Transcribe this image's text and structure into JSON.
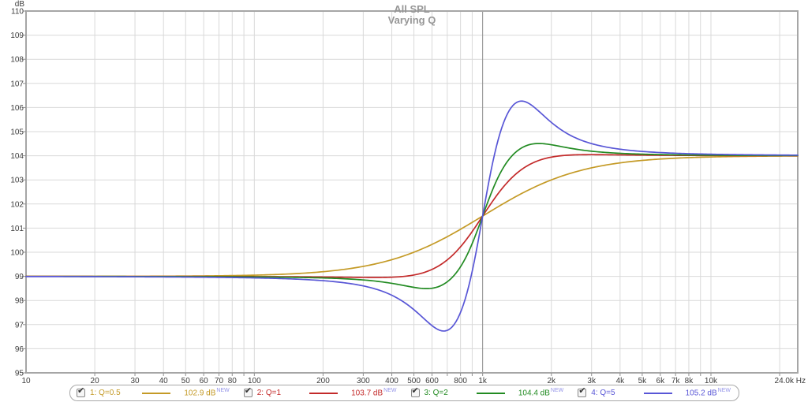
{
  "chart_data": {
    "type": "line",
    "title": "All SPL",
    "subtitle": "Varying Q",
    "legend_position": "bottom",
    "y_axis": {
      "unit": "dB",
      "min": 95,
      "max": 110,
      "tick_step": 1,
      "ticks": [
        110,
        109,
        108,
        107,
        106,
        105,
        104,
        103,
        102,
        101,
        100,
        99,
        98,
        97,
        96,
        95
      ]
    },
    "x_axis": {
      "unit": "Hz",
      "scale": "log",
      "min": 10,
      "max": 24000,
      "end_label": "24.0k Hz",
      "labeled_ticks": [
        {
          "f": 10,
          "label": "10"
        },
        {
          "f": 20,
          "label": "20"
        },
        {
          "f": 30,
          "label": "30"
        },
        {
          "f": 40,
          "label": "40"
        },
        {
          "f": 50,
          "label": "50"
        },
        {
          "f": 60,
          "label": "60"
        },
        {
          "f": 70,
          "label": "70"
        },
        {
          "f": 80,
          "label": "80"
        },
        {
          "f": 100,
          "label": "100"
        },
        {
          "f": 200,
          "label": "200"
        },
        {
          "f": 300,
          "label": "300"
        },
        {
          "f": 400,
          "label": "400"
        },
        {
          "f": 500,
          "label": "500"
        },
        {
          "f": 600,
          "label": "600"
        },
        {
          "f": 800,
          "label": "800"
        },
        {
          "f": 1000,
          "label": "1k"
        },
        {
          "f": 2000,
          "label": "2k"
        },
        {
          "f": 3000,
          "label": "3k"
        },
        {
          "f": 4000,
          "label": "4k"
        },
        {
          "f": 5000,
          "label": "5k"
        },
        {
          "f": 6000,
          "label": "6k"
        },
        {
          "f": 7000,
          "label": "7k"
        },
        {
          "f": 8000,
          "label": "8k"
        },
        {
          "f": 10000,
          "label": "10k"
        }
      ],
      "gridline_freqs": [
        20,
        30,
        40,
        50,
        60,
        70,
        80,
        90,
        100,
        200,
        300,
        400,
        500,
        600,
        700,
        800,
        900,
        2000,
        3000,
        4000,
        5000,
        6000,
        7000,
        8000,
        9000,
        10000,
        20000
      ],
      "emphasized_gridline": 1000
    },
    "colors": {
      "grid": "#d9d9d9",
      "grid_emphasis": "#8c8c8c",
      "frame": "#a6a6a6",
      "tick_text": "#3c3c3c",
      "title_text": "#979797",
      "new_tag": "#9494e8"
    },
    "series": [
      {
        "name": "1: Q=0.5",
        "q": 0.5,
        "color": "#c49a26",
        "checked": true,
        "legend_value": "102.9 dB",
        "legend_tag": "NEW",
        "model": {
          "low": 99,
          "high": 104,
          "f0": 1000,
          "k": 2.3,
          "a": 0,
          "u1": 0.2,
          "s": 0.2
        },
        "points": [
          [
            10,
            99.0
          ],
          [
            100,
            99.0
          ],
          [
            200,
            99.2
          ],
          [
            300,
            99.4
          ],
          [
            500,
            99.8
          ],
          [
            700,
            100.5
          ],
          [
            1000,
            101.5
          ],
          [
            1500,
            102.5
          ],
          [
            2000,
            103.0
          ],
          [
            3000,
            103.5
          ],
          [
            5000,
            103.8
          ],
          [
            10000,
            104.0
          ],
          [
            24000,
            104.0
          ]
        ]
      },
      {
        "name": "2: Q=1",
        "q": 1,
        "color": "#c32a2a",
        "checked": true,
        "legend_value": "103.7 dB",
        "legend_tag": "NEW",
        "model": {
          "low": 99,
          "high": 104,
          "f0": 1000,
          "k": 5.5,
          "a": 0.15,
          "u1": 0.26,
          "s": 0.26
        },
        "points": [
          [
            10,
            99.0
          ],
          [
            100,
            99.0
          ],
          [
            200,
            99.0
          ],
          [
            300,
            98.9
          ],
          [
            500,
            99.0
          ],
          [
            700,
            99.7
          ],
          [
            1000,
            101.5
          ],
          [
            1500,
            103.5
          ],
          [
            2000,
            103.8
          ],
          [
            3000,
            104.0
          ],
          [
            5000,
            104.0
          ],
          [
            10000,
            104.0
          ],
          [
            24000,
            104.0
          ]
        ]
      },
      {
        "name": "3: Q=2",
        "q": 2,
        "color": "#228b22",
        "checked": true,
        "legend_value": "104.4 dB",
        "legend_tag": "NEW",
        "model": {
          "low": 99,
          "high": 104,
          "f0": 1000,
          "k": 9,
          "a": 0.725,
          "u1": 0.2,
          "s": 0.2
        },
        "points": [
          [
            10,
            99.0
          ],
          [
            100,
            99.0
          ],
          [
            200,
            98.9
          ],
          [
            300,
            98.8
          ],
          [
            500,
            98.6
          ],
          [
            700,
            98.7
          ],
          [
            1000,
            101.5
          ],
          [
            1600,
            104.4
          ],
          [
            2000,
            104.4
          ],
          [
            3000,
            104.2
          ],
          [
            5000,
            104.1
          ],
          [
            10000,
            104.0
          ],
          [
            24000,
            104.0
          ]
        ]
      },
      {
        "name": "4: Q=5",
        "q": 5,
        "color": "#5856d6",
        "checked": true,
        "legend_value": "105.2 dB",
        "legend_tag": "NEW",
        "model": {
          "low": 99,
          "high": 104,
          "f0": 1000,
          "k": 12.5,
          "a": 3.4,
          "u1": 0.135,
          "s": 0.19
        },
        "points": [
          [
            10,
            99.0
          ],
          [
            100,
            99.0
          ],
          [
            200,
            98.9
          ],
          [
            300,
            98.7
          ],
          [
            500,
            98.2
          ],
          [
            700,
            97.2
          ],
          [
            750,
            97.1
          ],
          [
            1000,
            101.5
          ],
          [
            1300,
            106.0
          ],
          [
            1500,
            105.9
          ],
          [
            2000,
            105.2
          ],
          [
            3000,
            104.5
          ],
          [
            5000,
            104.2
          ],
          [
            10000,
            104.0
          ],
          [
            24000,
            104.0
          ]
        ]
      }
    ]
  }
}
